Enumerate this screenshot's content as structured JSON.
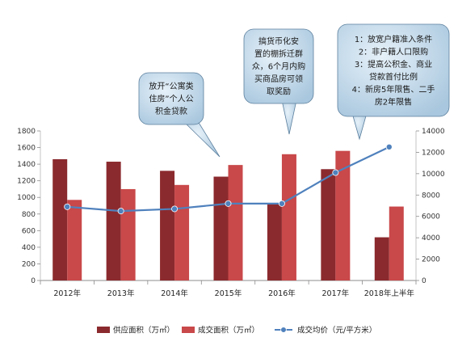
{
  "chart_data": {
    "type": "bar",
    "categories": [
      "2012年",
      "2013年",
      "2014年",
      "2015年",
      "2016年",
      "2017年",
      "2018年上半年"
    ],
    "series": [
      {
        "name": "供应面积（万㎡）",
        "type": "bar",
        "axis": "left",
        "color": "#8B2A2E",
        "values": [
          1460,
          1430,
          1320,
          1250,
          930,
          1340,
          520
        ]
      },
      {
        "name": "成交面积（万㎡）",
        "type": "bar",
        "axis": "left",
        "color": "#C9484A",
        "values": [
          970,
          1100,
          1150,
          1390,
          1520,
          1560,
          890
        ]
      },
      {
        "name": "成交均价（元/平方米）",
        "type": "line",
        "axis": "right",
        "color": "#4F81BD",
        "values": [
          6900,
          6500,
          6700,
          7200,
          7200,
          10100,
          12500
        ]
      }
    ],
    "y_left": {
      "min": 0,
      "max": 1800,
      "ticks": [
        0,
        200,
        400,
        600,
        800,
        1000,
        1200,
        1400,
        1600,
        1800
      ]
    },
    "y_right": {
      "min": 0,
      "max": 14000,
      "ticks": [
        0,
        2000,
        4000,
        6000,
        8000,
        10000,
        12000,
        14000
      ]
    },
    "grid": false,
    "legend_position": "bottom",
    "annotations": [
      {
        "category_index": 2,
        "lines": [
          "放开“公寓类",
          "住房”个人公",
          "积金贷款"
        ]
      },
      {
        "category_index": 4,
        "lines": [
          "搞货币化安",
          "置的棚拆迁群",
          "众，6个月内购",
          "买商品房可领",
          "取奖励"
        ]
      },
      {
        "category_index": 6,
        "lines": [
          "1：放宽户籍准入条件",
          "2：非户籍人口限购",
          "3：提高公积金、商业",
          "贷款首付比例",
          "4：新房5年限售、二手",
          "房2年限售"
        ]
      }
    ]
  }
}
